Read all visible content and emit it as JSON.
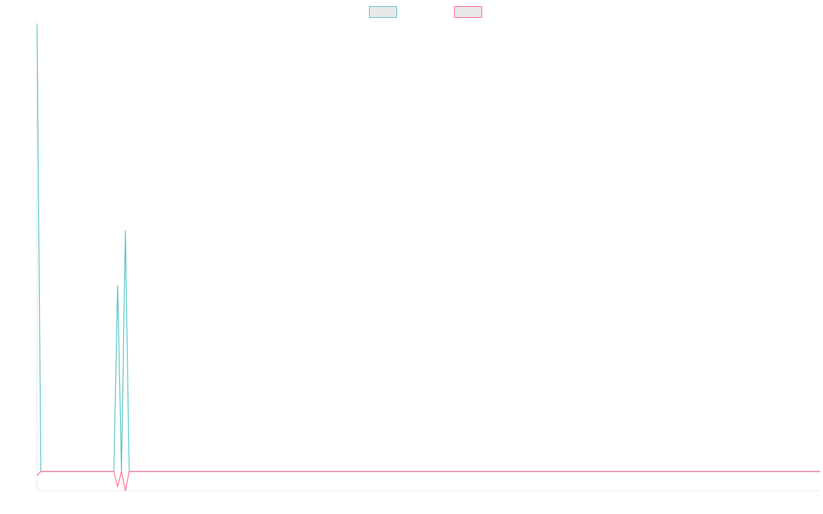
{
  "chart_data": {
    "type": "line",
    "x": [
      0,
      1,
      20,
      21,
      22,
      23,
      24,
      204
    ],
    "xlim": [
      0,
      204
    ],
    "ylim": [
      -4.3,
      100
    ],
    "legend": "top",
    "series": [
      {
        "color": "#4bc0c0",
        "values": [
          100,
          0,
          0,
          41.7,
          0,
          54,
          0,
          0
        ]
      },
      {
        "color": "#ff6384",
        "values": [
          -0.9,
          0,
          0,
          -3.4,
          0,
          -4.3,
          0,
          0
        ]
      }
    ]
  }
}
